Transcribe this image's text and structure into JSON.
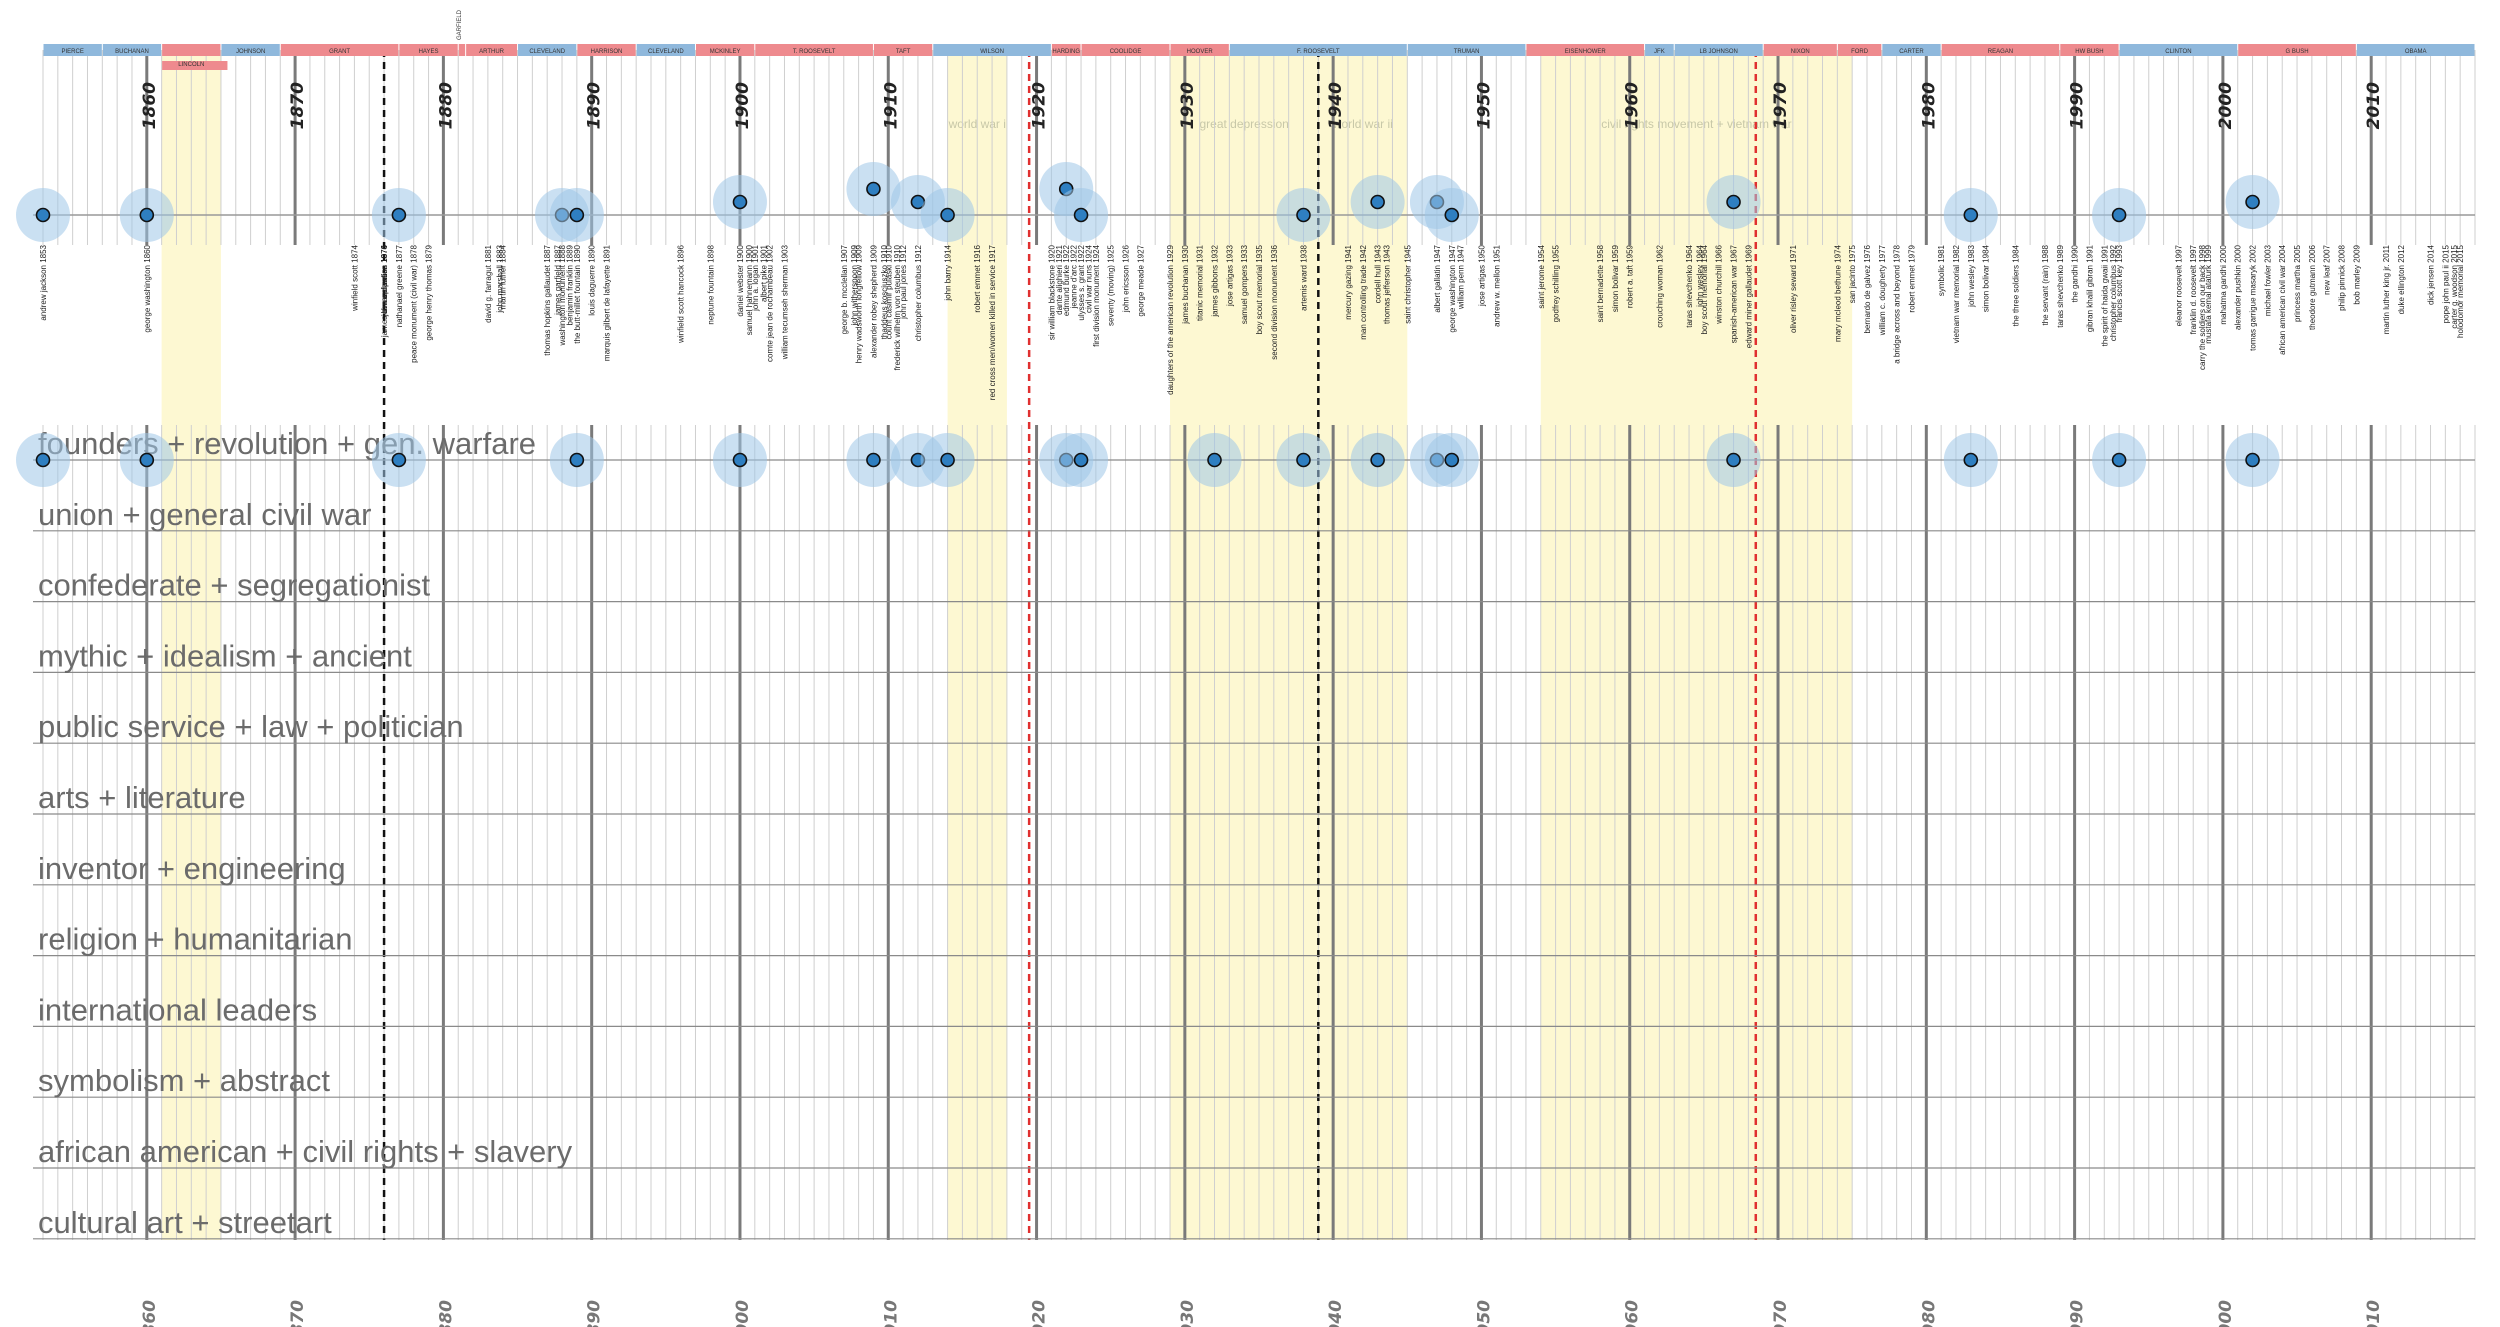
{
  "chart_data": {
    "type": "timeline",
    "x_range": [
      1853,
      2017
    ],
    "ticks": [
      1860,
      1870,
      1880,
      1890,
      1900,
      1910,
      1920,
      1930,
      1940,
      1950,
      1960,
      1970,
      1980,
      1990,
      2000,
      2010
    ],
    "tick_labels": [
      "1860",
      "1870",
      "1880",
      "1890",
      "1900",
      "1910",
      "1920",
      "1930",
      "1940",
      "1950",
      "1960",
      "1970",
      "1980",
      "1990",
      "2000",
      "2010"
    ],
    "party_colors": {
      "D": "#8fb8dc",
      "R": "#ee8a8e"
    },
    "presidents": [
      {
        "name": "PIERCE",
        "start": 1853,
        "end": 1857,
        "party": "D"
      },
      {
        "name": "BUCHANAN",
        "start": 1857,
        "end": 1861,
        "party": "D"
      },
      {
        "name": "LINCOLN",
        "start": 1861,
        "end": 1865,
        "party": "R"
      },
      {
        "name": "JOHNSON",
        "start": 1865,
        "end": 1869,
        "party": "D"
      },
      {
        "name": "GRANT",
        "start": 1869,
        "end": 1877,
        "party": "R"
      },
      {
        "name": "HAYES",
        "start": 1877,
        "end": 1881,
        "party": "R"
      },
      {
        "name": "GARFIELD",
        "start": 1881,
        "end": 1881.5,
        "party": "R"
      },
      {
        "name": "ARTHUR",
        "start": 1881.5,
        "end": 1885,
        "party": "R"
      },
      {
        "name": "CLEVELAND",
        "start": 1885,
        "end": 1889,
        "party": "D"
      },
      {
        "name": "HARRISON",
        "start": 1889,
        "end": 1893,
        "party": "R"
      },
      {
        "name": "CLEVELAND",
        "start": 1893,
        "end": 1897,
        "party": "D"
      },
      {
        "name": "MCKINLEY",
        "start": 1897,
        "end": 1901,
        "party": "R"
      },
      {
        "name": "T. ROOSEVELT",
        "start": 1901,
        "end": 1909,
        "party": "R"
      },
      {
        "name": "TAFT",
        "start": 1909,
        "end": 1913,
        "party": "R"
      },
      {
        "name": "WILSON",
        "start": 1913,
        "end": 1921,
        "party": "D"
      },
      {
        "name": "HARDING",
        "start": 1921,
        "end": 1923,
        "party": "R"
      },
      {
        "name": "COOLIDGE",
        "start": 1923,
        "end": 1929,
        "party": "R"
      },
      {
        "name": "HOOVER",
        "start": 1929,
        "end": 1933,
        "party": "R"
      },
      {
        "name": "F. ROOSEVELT",
        "start": 1933,
        "end": 1945,
        "party": "D"
      },
      {
        "name": "TRUMAN",
        "start": 1945,
        "end": 1953,
        "party": "D"
      },
      {
        "name": "EISENHOWER",
        "start": 1953,
        "end": 1961,
        "party": "R"
      },
      {
        "name": "JFK",
        "start": 1961,
        "end": 1963,
        "party": "D"
      },
      {
        "name": "LB JOHNSON",
        "start": 1963,
        "end": 1969,
        "party": "D"
      },
      {
        "name": "NIXON",
        "start": 1969,
        "end": 1974,
        "party": "R"
      },
      {
        "name": "FORD",
        "start": 1974,
        "end": 1977,
        "party": "R"
      },
      {
        "name": "CARTER",
        "start": 1977,
        "end": 1981,
        "party": "D"
      },
      {
        "name": "REAGAN",
        "start": 1981,
        "end": 1989,
        "party": "R"
      },
      {
        "name": "HW BUSH",
        "start": 1989,
        "end": 1993,
        "party": "R"
      },
      {
        "name": "CLINTON",
        "start": 1993,
        "end": 2001,
        "party": "D"
      },
      {
        "name": "G BUSH",
        "start": 2001,
        "end": 2009,
        "party": "R"
      },
      {
        "name": "OBAMA",
        "start": 2009,
        "end": 2017,
        "party": "D"
      }
    ],
    "eras": [
      {
        "label": "",
        "start": 1861,
        "end": 1865
      },
      {
        "label": "world war i",
        "start": 1914,
        "end": 1918
      },
      {
        "label": "great depression",
        "start": 1929,
        "end": 1939
      },
      {
        "label": "world war ii",
        "start": 1939,
        "end": 1945
      },
      {
        "label": "civil rights movement + vietnam war",
        "start": 1954,
        "end": 1975
      }
    ],
    "marker_lines": [
      {
        "year": 1876,
        "style": "black-dashed"
      },
      {
        "year": 1939,
        "style": "black-dashed"
      },
      {
        "year": 1919.5,
        "style": "red-dashed"
      },
      {
        "year": 1968.5,
        "style": "red-dashed"
      }
    ],
    "timeline_points": [
      {
        "year": 1853,
        "level": 0
      },
      {
        "year": 1860,
        "level": 0
      },
      {
        "year": 1877,
        "level": 0
      },
      {
        "year": 1888,
        "level": 0
      },
      {
        "year": 1889,
        "level": 0
      },
      {
        "year": 1900,
        "level": 1
      },
      {
        "year": 1909,
        "level": 2
      },
      {
        "year": 1912,
        "level": 1
      },
      {
        "year": 1914,
        "level": 0
      },
      {
        "year": 1922,
        "level": 2
      },
      {
        "year": 1923,
        "level": 0
      },
      {
        "year": 1938,
        "level": 0
      },
      {
        "year": 1943,
        "level": 1
      },
      {
        "year": 1947,
        "level": 1
      },
      {
        "year": 1948,
        "level": 0
      },
      {
        "year": 1967,
        "level": 1
      },
      {
        "year": 1983,
        "level": 0
      },
      {
        "year": 1993,
        "level": 0
      },
      {
        "year": 2002,
        "level": 1
      }
    ],
    "monuments": [
      {
        "year": 1853,
        "name": "andrew jackson 1853"
      },
      {
        "year": 1860,
        "name": "george washington 1860"
      },
      {
        "year": 1874,
        "name": "winfield scott 1874"
      },
      {
        "year": 1876,
        "name": "john a. rawlins 1874"
      },
      {
        "year": 1876,
        "name": "james b. mcpherson 1876"
      },
      {
        "year": 1876,
        "name": "emancipation 1876"
      },
      {
        "year": 1877,
        "name": "nathanael greene 1877"
      },
      {
        "year": 1878,
        "name": "peace monument (civil war) 1878"
      },
      {
        "year": 1879,
        "name": "george henry thomas 1879"
      },
      {
        "year": 1883,
        "name": "david g. farragut 1881"
      },
      {
        "year": 1883.8,
        "name": "john marshall 1883"
      },
      {
        "year": 1884,
        "name": "martin luther 1884"
      },
      {
        "year": 1887,
        "name": "thomas hopkins gallaudet 1887"
      },
      {
        "year": 1887.7,
        "name": "james garfield 1887"
      },
      {
        "year": 1888,
        "name": "washington monument 1888"
      },
      {
        "year": 1888.5,
        "name": "benjamin franklin 1889"
      },
      {
        "year": 1889,
        "name": "the butt-millet fountain 1890"
      },
      {
        "year": 1890,
        "name": "louis daguerre 1890"
      },
      {
        "year": 1891,
        "name": "marquis gilbert de lafayette 1891"
      },
      {
        "year": 1896,
        "name": "winfield scott hancock 1896"
      },
      {
        "year": 1898,
        "name": "neptune fountain 1898"
      },
      {
        "year": 1900,
        "name": "daniel webster 1900"
      },
      {
        "year": 1900.6,
        "name": "samuel hahnemann 1900"
      },
      {
        "year": 1901,
        "name": "john a. logan 1901"
      },
      {
        "year": 1901.6,
        "name": "albert pike 1901"
      },
      {
        "year": 1902,
        "name": "comte jean de rochambeau 1902"
      },
      {
        "year": 1903,
        "name": "william tecumseh sherman 1903"
      },
      {
        "year": 1907,
        "name": "george b. mcclellan 1907"
      },
      {
        "year": 1907.7,
        "name": "john witherspoon 1909"
      },
      {
        "year": 1908,
        "name": "henry wadsworth longfellow 1909"
      },
      {
        "year": 1909,
        "name": "alexander robey shepherd 1909"
      },
      {
        "year": 1909.7,
        "name": "thaddeus kosciuszko 1910"
      },
      {
        "year": 1910,
        "name": "count casimir pulaski 1910"
      },
      {
        "year": 1910.6,
        "name": "frederick wilhelm von steuben 1910"
      },
      {
        "year": 1911,
        "name": "john paul jones 1912"
      },
      {
        "year": 1912,
        "name": "christopher columbus 1912"
      },
      {
        "year": 1914,
        "name": "john barry 1914"
      },
      {
        "year": 1916,
        "name": "robert emmet 1916"
      },
      {
        "year": 1917,
        "name": "red cross men/women killed in service 1917"
      },
      {
        "year": 1921,
        "name": "sir william blackstone 1920"
      },
      {
        "year": 1921.5,
        "name": "dante alighieri 1921"
      },
      {
        "year": 1922,
        "name": "edmund burke 1922"
      },
      {
        "year": 1922.5,
        "name": "jeanne d'arc 1922"
      },
      {
        "year": 1923,
        "name": "ulysses s. grant 1922"
      },
      {
        "year": 1923.5,
        "name": "civil war nuns 1924"
      },
      {
        "year": 1924,
        "name": "first division monument 1924"
      },
      {
        "year": 1925,
        "name": "seventy (moving) 1925"
      },
      {
        "year": 1926,
        "name": "john ericsson 1926"
      },
      {
        "year": 1927,
        "name": "george meade 1927"
      },
      {
        "year": 1929,
        "name": "daughters of the american revolution 1929"
      },
      {
        "year": 1930,
        "name": "james buchanan 1930"
      },
      {
        "year": 1931,
        "name": "titanic memorial 1931"
      },
      {
        "year": 1932,
        "name": "james gibbons 1932"
      },
      {
        "year": 1933,
        "name": "jose artigas 1933"
      },
      {
        "year": 1934,
        "name": "samuel gompers 1933"
      },
      {
        "year": 1935,
        "name": "boy scout memorial 1935"
      },
      {
        "year": 1936,
        "name": "second division monument 1936"
      },
      {
        "year": 1938,
        "name": "artemis ward 1938"
      },
      {
        "year": 1941,
        "name": "mercury gazing 1941"
      },
      {
        "year": 1942,
        "name": "man controlling trade 1942"
      },
      {
        "year": 1943,
        "name": "cordell hull 1943"
      },
      {
        "year": 1943.6,
        "name": "thomas jefferson 1943"
      },
      {
        "year": 1945,
        "name": "saint christopher 1945"
      },
      {
        "year": 1947,
        "name": "albert gallatin 1947"
      },
      {
        "year": 1948,
        "name": "george washington 1947"
      },
      {
        "year": 1948.6,
        "name": "william penn 1947"
      },
      {
        "year": 1950,
        "name": "jose artigas 1950"
      },
      {
        "year": 1951,
        "name": "andrew w. mellon 1951"
      },
      {
        "year": 1954,
        "name": "saint jerome 1954"
      },
      {
        "year": 1955,
        "name": "godfrey schilling 1955"
      },
      {
        "year": 1958,
        "name": "saint bernadette 1958"
      },
      {
        "year": 1959,
        "name": "simon bolivar 1959"
      },
      {
        "year": 1960,
        "name": "robert a. taft 1959"
      },
      {
        "year": 1962,
        "name": "crouching woman 1962"
      },
      {
        "year": 1964,
        "name": "taras shevchenko 1964"
      },
      {
        "year": 1964.7,
        "name": "john wesley 1964"
      },
      {
        "year": 1965,
        "name": "boy scout memorial 1964"
      },
      {
        "year": 1966,
        "name": "winston churchill 1966"
      },
      {
        "year": 1967,
        "name": "spanish-american war 1967"
      },
      {
        "year": 1968,
        "name": "edward miner gallaudet 1969"
      },
      {
        "year": 1971,
        "name": "oliver risley seward 1971"
      },
      {
        "year": 1974,
        "name": "mary mcleod bethune 1974"
      },
      {
        "year": 1975,
        "name": "san jacinto 1975"
      },
      {
        "year": 1976,
        "name": "bernardo de galvez 1976"
      },
      {
        "year": 1977,
        "name": "william c. dougherty 1977"
      },
      {
        "year": 1978,
        "name": "a bridge across and beyond 1978"
      },
      {
        "year": 1979,
        "name": "robert emmet 1979"
      },
      {
        "year": 1981,
        "name": "symbolic 1981"
      },
      {
        "year": 1982,
        "name": "vietnam war memorial 1982"
      },
      {
        "year": 1983,
        "name": "john wesley 1983"
      },
      {
        "year": 1984,
        "name": "simon bolivar 1984"
      },
      {
        "year": 1986,
        "name": "the three soldiers 1984"
      },
      {
        "year": 1988,
        "name": "the servant (rain) 1988"
      },
      {
        "year": 1989,
        "name": "taras shevchenko 1989"
      },
      {
        "year": 1990,
        "name": "the gandhi 1990"
      },
      {
        "year": 1991,
        "name": "gibran khalil gibran 1991"
      },
      {
        "year": 1992,
        "name": "the spirit of haida gwaii 1991"
      },
      {
        "year": 1992.6,
        "name": "christopher columbus 1992"
      },
      {
        "year": 1993,
        "name": "francis scott key 1993"
      },
      {
        "year": 1997,
        "name": "eleanor roosevelt 1997"
      },
      {
        "year": 1998,
        "name": "franklin d. roosevelt 1997"
      },
      {
        "year": 1998.6,
        "name": "carry the soldiers on our back 1998"
      },
      {
        "year": 1999,
        "name": "mustafa kemal ataturk 1999"
      },
      {
        "year": 2000,
        "name": "mahatma gandhi 2000"
      },
      {
        "year": 2001,
        "name": "alexander pushkin 2000"
      },
      {
        "year": 2002,
        "name": "tomas garrigue masaryk 2002"
      },
      {
        "year": 2003,
        "name": "michael fowler 2003"
      },
      {
        "year": 2004,
        "name": "african american civil war 2004"
      },
      {
        "year": 2005,
        "name": "princess martha 2005"
      },
      {
        "year": 2006,
        "name": "theodore gutmann 2006"
      },
      {
        "year": 2007,
        "name": "new leaf 2007"
      },
      {
        "year": 2008,
        "name": "philip pinnick 2008"
      },
      {
        "year": 2009,
        "name": "bob marley 2009"
      },
      {
        "year": 2011,
        "name": "martin luther king jr. 2011"
      },
      {
        "year": 2012,
        "name": "duke ellington 2012"
      },
      {
        "year": 2014,
        "name": "dick jensen 2014"
      },
      {
        "year": 2015,
        "name": "pope john paul ii 2015"
      },
      {
        "year": 2015.6,
        "name": "carter g. woodson 2015"
      },
      {
        "year": 2016,
        "name": "holodomor memorial 2015"
      }
    ],
    "categories": [
      "founders + revolution + gen. warfare",
      "union + general civil war",
      "confederate + segregationist",
      "mythic + idealism + ancient",
      "public service + law + politician",
      "arts + literature",
      "inventor + engineering",
      "religion + humanitarian",
      "international leaders",
      "symbolism + abstract",
      "african american + civil rights + slavery",
      "cultural art + streetart"
    ],
    "category_points": [
      {
        "year": 1853,
        "category": 0
      },
      {
        "year": 1860,
        "category": 0
      },
      {
        "year": 1877,
        "category": 0
      },
      {
        "year": 1889,
        "category": 0
      },
      {
        "year": 1900,
        "category": 0
      },
      {
        "year": 1909,
        "category": 0
      },
      {
        "year": 1912,
        "category": 0
      },
      {
        "year": 1914,
        "category": 0
      },
      {
        "year": 1922,
        "category": 0
      },
      {
        "year": 1923,
        "category": 0
      },
      {
        "year": 1932,
        "category": 0
      },
      {
        "year": 1938,
        "category": 0
      },
      {
        "year": 1943,
        "category": 0
      },
      {
        "year": 1947,
        "category": 0
      },
      {
        "year": 1948,
        "category": 0
      },
      {
        "year": 1967,
        "category": 0
      },
      {
        "year": 1983,
        "category": 0
      },
      {
        "year": 1993,
        "category": 0
      },
      {
        "year": 2002,
        "category": 0
      }
    ],
    "colors": {
      "dot_fill": "#2f7fc1",
      "dot_halo": "#9fc6e7",
      "era_fill": "#fdf8d2",
      "major_grid": "#7a7a7a",
      "minor_grid": "#cfcfcf",
      "marker_black": "#111111",
      "marker_red": "#e03030"
    }
  }
}
